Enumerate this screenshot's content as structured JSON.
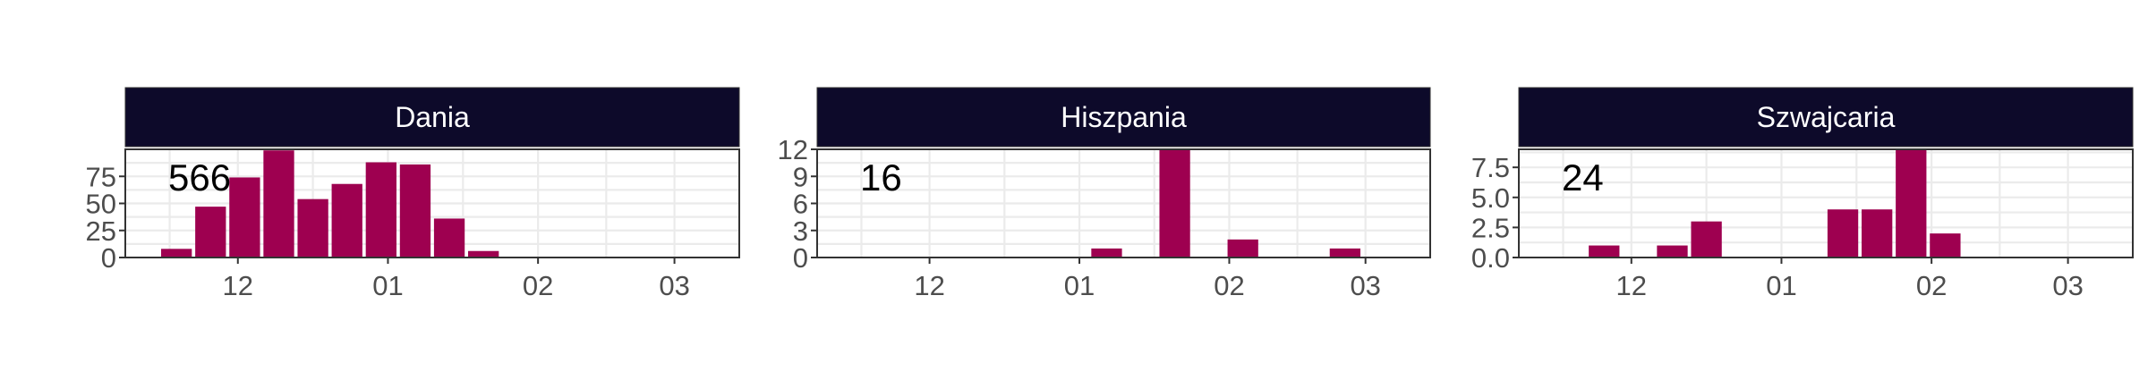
{
  "chart_data": [
    {
      "type": "bar",
      "panel_title": "Dania",
      "annotation": "566",
      "x_ticks": [
        "12",
        "01",
        "02",
        "03"
      ],
      "y_ticks": [
        "0",
        "25",
        "50",
        "75"
      ],
      "ylim": [
        0,
        100
      ],
      "xlabel": "",
      "ylabel": "",
      "grid": true,
      "bar_color": "#9E0050",
      "strip_color": "#0D0A2A",
      "weeks": [
        "1",
        "2",
        "3",
        "4",
        "5",
        "6",
        "7",
        "8",
        "9",
        "10",
        "11",
        "12",
        "13",
        "14",
        "15",
        "16",
        "17",
        "18"
      ],
      "values": [
        0,
        8,
        47,
        74,
        99,
        54,
        68,
        88,
        86,
        36,
        6,
        0,
        0,
        0,
        0,
        0,
        0,
        0
      ]
    },
    {
      "type": "bar",
      "panel_title": "Hiszpania",
      "annotation": "16",
      "x_ticks": [
        "12",
        "01",
        "02",
        "03"
      ],
      "y_ticks": [
        "0",
        "3",
        "6",
        "9",
        "12"
      ],
      "ylim": [
        0,
        12
      ],
      "xlabel": "",
      "ylabel": "",
      "grid": true,
      "bar_color": "#9E0050",
      "strip_color": "#0D0A2A",
      "weeks": [
        "1",
        "2",
        "3",
        "4",
        "5",
        "6",
        "7",
        "8",
        "9",
        "10",
        "11",
        "12",
        "13",
        "14",
        "15",
        "16",
        "17",
        "18"
      ],
      "values": [
        0,
        0,
        0,
        0,
        0,
        0,
        0,
        0,
        1,
        0,
        12,
        0,
        2,
        0,
        0,
        1,
        0,
        0
      ]
    },
    {
      "type": "bar",
      "panel_title": "Szwajcaria",
      "annotation": "24",
      "x_ticks": [
        "12",
        "01",
        "02",
        "03"
      ],
      "y_ticks": [
        "0.0",
        "2.5",
        "5.0",
        "7.5"
      ],
      "ylim": [
        0,
        9
      ],
      "xlabel": "",
      "ylabel": "",
      "grid": true,
      "bar_color": "#9E0050",
      "strip_color": "#0D0A2A",
      "weeks": [
        "1",
        "2",
        "3",
        "4",
        "5",
        "6",
        "7",
        "8",
        "9",
        "10",
        "11",
        "12",
        "13",
        "14",
        "15",
        "16",
        "17",
        "18"
      ],
      "values": [
        0,
        0,
        1,
        0,
        1,
        3,
        0,
        0,
        0,
        4,
        4,
        9,
        2,
        0,
        0,
        0,
        0,
        0
      ]
    }
  ]
}
